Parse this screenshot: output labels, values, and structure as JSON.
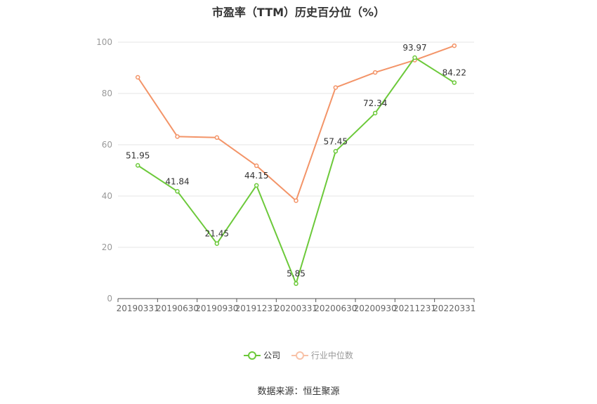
{
  "chart_data": {
    "type": "line",
    "title": "市盈率（TTM）历史百分位（%）",
    "categories": [
      "20190331",
      "20190630",
      "20190930",
      "20191231",
      "20200331",
      "20200630",
      "20200930",
      "20211231",
      "20220331"
    ],
    "ylim": [
      0,
      100
    ],
    "yticks": [
      0,
      20,
      40,
      60,
      80,
      100
    ],
    "grid": true,
    "legend_position": "bottom",
    "series": [
      {
        "name": "公司",
        "color": "#6cc93a",
        "values": [
          51.95,
          41.84,
          21.45,
          44.15,
          5.85,
          57.45,
          72.34,
          93.97,
          84.22
        ],
        "labels": [
          "51.95",
          "41.84",
          "21.45",
          "44.15",
          "5.85",
          "57.45",
          "72.34",
          "93.97",
          "84.22"
        ]
      },
      {
        "name": "行业中位数",
        "color": "#f39468",
        "values": [
          86.3,
          63.2,
          62.8,
          51.8,
          38.2,
          82.3,
          88.2,
          93.0,
          98.6
        ]
      }
    ]
  },
  "source": "数据来源：恒生聚源"
}
